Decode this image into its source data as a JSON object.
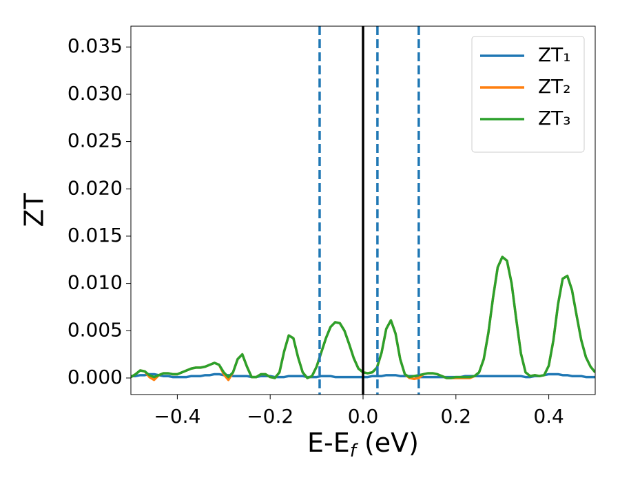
{
  "chart_data": {
    "type": "line",
    "xlabel_parts": [
      "E-E",
      "f",
      " (eV)"
    ],
    "ylabel": "ZT",
    "xlim": [
      -0.5,
      0.5
    ],
    "ylim": [
      -0.00175,
      0.0372
    ],
    "xticks": [
      {
        "value": -0.4,
        "label": "−0.4"
      },
      {
        "value": -0.2,
        "label": "−0.2"
      },
      {
        "value": 0,
        "label": "0.0"
      },
      0.2,
      0.4
    ],
    "yticks": [
      {
        "value": 0,
        "label": "0.000"
      },
      {
        "value": 0.005,
        "label": "0.005"
      },
      {
        "value": 0.01,
        "label": "0.010"
      },
      {
        "value": 0.015,
        "label": "0.015"
      },
      {
        "value": 0.02,
        "label": "0.020"
      },
      {
        "value": 0.025,
        "label": "0.025"
      },
      {
        "value": 0.03,
        "label": "0.030"
      },
      {
        "value": 0.035,
        "label": "0.035"
      }
    ],
    "grid": false,
    "legend": "upper right",
    "vlines": [
      {
        "x": 0,
        "color": "#000000",
        "style": "solid"
      },
      {
        "x": -0.0935,
        "color": "#1f77b4",
        "style": "dashed"
      },
      {
        "x": 0.031,
        "color": "#1f77b4",
        "style": "dashed"
      },
      {
        "x": 0.12,
        "color": "#1f77b4",
        "style": "dashed"
      }
    ],
    "x": [
      -0.5,
      -0.49,
      -0.48,
      -0.47,
      -0.46,
      -0.45,
      -0.44,
      -0.43,
      -0.42,
      -0.41,
      -0.4,
      -0.39,
      -0.38,
      -0.37,
      -0.36,
      -0.35,
      -0.34,
      -0.33,
      -0.32,
      -0.31,
      -0.3,
      -0.29,
      -0.28,
      -0.27,
      -0.26,
      -0.25,
      -0.24,
      -0.23,
      -0.22,
      -0.21,
      -0.2,
      -0.19,
      -0.18,
      -0.17,
      -0.16,
      -0.15,
      -0.14,
      -0.13,
      -0.12,
      -0.11,
      -0.1,
      -0.09,
      -0.08,
      -0.07,
      -0.06,
      -0.05,
      -0.04,
      -0.03,
      -0.02,
      -0.01,
      0,
      0.01,
      0.02,
      0.03,
      0.04,
      0.05,
      0.06,
      0.07,
      0.08,
      0.09,
      0.1,
      0.11,
      0.12,
      0.13,
      0.14,
      0.15,
      0.16,
      0.17,
      0.18,
      0.19,
      0.2,
      0.21,
      0.22,
      0.23,
      0.24,
      0.25,
      0.26,
      0.27,
      0.28,
      0.29,
      0.3,
      0.31,
      0.32,
      0.33,
      0.34,
      0.35,
      0.36,
      0.37,
      0.38,
      0.39,
      0.4,
      0.41,
      0.42,
      0.43,
      0.44,
      0.45,
      0.46,
      0.47,
      0.48,
      0.49,
      0.5
    ],
    "series": [
      {
        "name": "ZT₁",
        "color": "#1f77b4",
        "values": [
          0.0002,
          0.0002,
          0.0003,
          0.0003,
          0.0004,
          0.0004,
          0.0003,
          0.0002,
          0.0002,
          0.0001,
          0.0001,
          0.0001,
          0.0001,
          0.0002,
          0.0002,
          0.0002,
          0.0003,
          0.0003,
          0.0004,
          0.0004,
          0.0003,
          0.0003,
          0.0002,
          0.0002,
          0.0002,
          0.0002,
          0.0001,
          0.0001,
          0.0002,
          0.0002,
          0.0002,
          0.0001,
          0.0001,
          0.0001,
          0.0002,
          0.0002,
          0.0002,
          0.0002,
          0.0001,
          0.0001,
          0.0001,
          0.0002,
          0.0002,
          0.0002,
          0.0001,
          0.0001,
          0.0001,
          0.0001,
          0.0001,
          0.0001,
          0.0001,
          0.0001,
          0.0002,
          0.0002,
          0.0002,
          0.0003,
          0.0003,
          0.0003,
          0.0002,
          0.0002,
          0.0002,
          0.0002,
          0.0001,
          0.0001,
          0.0001,
          0.0001,
          0.0001,
          0.0001,
          0.0001,
          0.0001,
          0.0001,
          0.0001,
          0.0002,
          0.0002,
          0.0002,
          0.0002,
          0.0002,
          0.0002,
          0.0002,
          0.0002,
          0.0002,
          0.0002,
          0.0002,
          0.0002,
          0.0002,
          0.0001,
          0.0001,
          0.0002,
          0.0002,
          0.0003,
          0.0004,
          0.0004,
          0.0004,
          0.0003,
          0.0003,
          0.0002,
          0.0002,
          0.0002,
          0.0001,
          0.0001,
          0.0001
        ]
      },
      {
        "name": "ZT₂",
        "color": "#ff7f0e",
        "values": [
          0.0001,
          0.0004,
          0.0008,
          0.0007,
          0.0001,
          -0.0002,
          0.0003,
          0.0005,
          0.0005,
          0.0004,
          0.0004,
          0.0006,
          0.0008,
          0.001,
          0.0011,
          0.0011,
          0.0012,
          0.0014,
          0.0016,
          0.0014,
          0.0004,
          -0.0002,
          0.0006,
          0.002,
          0.0025,
          0.0012,
          0.0001,
          0.0001,
          0.0004,
          0.0004,
          0.0001,
          0,
          0.0006,
          0.0028,
          0.0045,
          0.0042,
          0.0022,
          0.0006,
          0,
          0.0002,
          0.0012,
          0.0027,
          0.0042,
          0.0054,
          0.0059,
          0.0058,
          0.005,
          0.0036,
          0.0021,
          0.001,
          0.0006,
          0.0005,
          0.0006,
          0.0011,
          0.0027,
          0.0052,
          0.0061,
          0.0047,
          0.002,
          0.0004,
          0,
          -0.0001,
          0,
          0.0004,
          0.0005,
          0.0005,
          0.0004,
          0.0002,
          0,
          0,
          0,
          0,
          0,
          0,
          0.0002,
          0.0006,
          0.002,
          0.0048,
          0.0085,
          0.0117,
          0.0128,
          0.0124,
          0.01,
          0.0062,
          0.0026,
          0.0006,
          0.0002,
          0.0003,
          0.0002,
          0.0003,
          0.0013,
          0.004,
          0.0078,
          0.0105,
          0.0108,
          0.0093,
          0.0066,
          0.004,
          0.0022,
          0.0012,
          0.0006
        ]
      },
      {
        "name": "ZT₃",
        "color": "#2ca02c",
        "values": [
          0.0001,
          0.0004,
          0.0008,
          0.0007,
          0.0003,
          0.0001,
          0.0003,
          0.0005,
          0.0005,
          0.0004,
          0.0004,
          0.0006,
          0.0008,
          0.001,
          0.0011,
          0.0011,
          0.0012,
          0.0014,
          0.0016,
          0.0014,
          0.0006,
          0.0001,
          0.0006,
          0.002,
          0.0025,
          0.0012,
          0.0001,
          0.0001,
          0.0004,
          0.0004,
          0.0001,
          0,
          0.0006,
          0.0028,
          0.0045,
          0.0042,
          0.0022,
          0.0006,
          0,
          0.0002,
          0.0012,
          0.0027,
          0.0042,
          0.0054,
          0.0059,
          0.0058,
          0.005,
          0.0036,
          0.0021,
          0.001,
          0.0006,
          0.0005,
          0.0006,
          0.0011,
          0.0027,
          0.0052,
          0.0061,
          0.0047,
          0.002,
          0.0004,
          0.0001,
          0.0002,
          0.0003,
          0.0004,
          0.0005,
          0.0005,
          0.0004,
          0.0002,
          0,
          0,
          0.0001,
          0.0001,
          0.0001,
          0.0001,
          0.0002,
          0.0006,
          0.002,
          0.0048,
          0.0085,
          0.0117,
          0.0128,
          0.0124,
          0.01,
          0.0062,
          0.0026,
          0.0006,
          0.0002,
          0.0003,
          0.0002,
          0.0003,
          0.0013,
          0.004,
          0.0078,
          0.0105,
          0.0108,
          0.0093,
          0.0066,
          0.004,
          0.0022,
          0.0012,
          0.0006
        ]
      }
    ]
  }
}
